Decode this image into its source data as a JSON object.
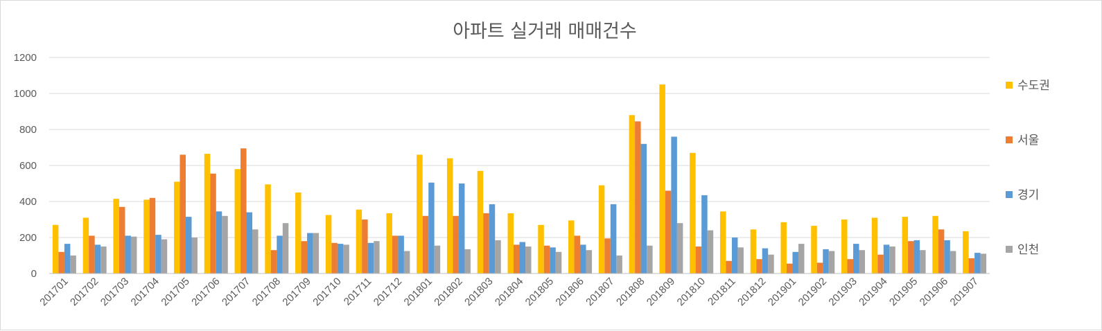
{
  "chart_data": {
    "type": "bar",
    "title": "아파트 실거래 매매건수",
    "xlabel": "",
    "ylabel": "",
    "ylim": [
      0,
      1200
    ],
    "yticks": [
      0,
      200,
      400,
      600,
      800,
      1000,
      1200
    ],
    "grid": true,
    "legend_position": "right",
    "categories": [
      "201701",
      "201702",
      "201703",
      "201704",
      "201705",
      "201706",
      "201707",
      "201708",
      "201709",
      "201710",
      "201711",
      "201712",
      "201801",
      "201802",
      "201803",
      "201804",
      "201805",
      "201806",
      "201807",
      "201808",
      "201809",
      "201810",
      "201811",
      "201812",
      "201901",
      "201902",
      "201903",
      "201904",
      "201905",
      "201906",
      "201907"
    ],
    "series": [
      {
        "name": "수도권",
        "color": "#FFC000",
        "values": [
          270,
          310,
          415,
          410,
          510,
          665,
          580,
          495,
          450,
          325,
          355,
          335,
          660,
          640,
          570,
          335,
          270,
          295,
          490,
          880,
          1050,
          670,
          345,
          245,
          285,
          265,
          300,
          310,
          315,
          320,
          235
        ]
      },
      {
        "name": "서울",
        "color": "#ED7D31",
        "values": [
          120,
          210,
          370,
          420,
          660,
          555,
          695,
          130,
          180,
          170,
          300,
          210,
          320,
          320,
          335,
          160,
          155,
          210,
          195,
          845,
          460,
          150,
          70,
          80,
          55,
          60,
          80,
          105,
          180,
          245,
          85
        ]
      },
      {
        "name": "경기",
        "color": "#5B9BD5",
        "values": [
          165,
          160,
          210,
          215,
          315,
          345,
          340,
          210,
          225,
          165,
          170,
          210,
          505,
          500,
          385,
          175,
          145,
          160,
          385,
          720,
          760,
          435,
          200,
          140,
          120,
          135,
          165,
          160,
          185,
          185,
          115
        ]
      },
      {
        "name": "인천",
        "color": "#A5A5A5",
        "values": [
          100,
          150,
          205,
          190,
          200,
          320,
          245,
          280,
          225,
          160,
          180,
          125,
          155,
          135,
          185,
          150,
          120,
          130,
          100,
          155,
          280,
          240,
          145,
          105,
          165,
          125,
          130,
          150,
          130,
          125,
          110
        ]
      }
    ]
  }
}
